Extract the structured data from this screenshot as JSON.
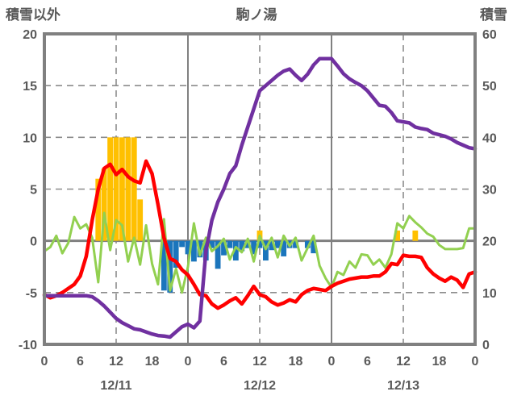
{
  "header": {
    "left_axis_title": "積雪以外",
    "chart_title": "駒ノ湯",
    "right_axis_title": "積雪"
  },
  "chart_data": {
    "type": "line",
    "title": "駒ノ湯",
    "left_axis": {
      "label": "積雪以外",
      "min": -10,
      "max": 20,
      "ticks": [
        20,
        15,
        10,
        5,
        0,
        -5,
        -10
      ]
    },
    "right_axis": {
      "label": "積雪",
      "min": 0,
      "max": 60,
      "ticks": [
        60,
        50,
        40,
        30,
        20,
        10,
        0
      ]
    },
    "x_axis": {
      "total_hours": 72,
      "days": [
        "12/11",
        "12/12",
        "12/13"
      ],
      "hour_tick_labels": [
        "0",
        "6",
        "12",
        "18"
      ],
      "final_tick_label": "0",
      "solid_gridline_hours": [
        24,
        48
      ],
      "dashed_gridline_hours": [
        12,
        36,
        60
      ]
    },
    "grid": {
      "dashed_left_values": [
        15,
        10,
        5,
        -5
      ],
      "zero_line": true
    },
    "legend": "none",
    "colors": {
      "purple_line": "#7030A0",
      "red_line": "#FF0000",
      "green_line": "#92D050",
      "orange_bars": "#FFC000",
      "blue_bars": "#1B75BC",
      "border": "#808080",
      "grid": "#8C8C8C",
      "text": "#595959"
    },
    "series": [
      {
        "id": "purple_line",
        "type": "line",
        "axis": "right",
        "color_key": "purple_line",
        "width": 4.5,
        "values": [
          9.4,
          9.4,
          9.4,
          9.4,
          9.4,
          9.4,
          9.4,
          9.4,
          9.2,
          8.4,
          7.4,
          6.2,
          5.0,
          4.2,
          3.6,
          3.0,
          2.8,
          2.4,
          2.0,
          1.7,
          1.6,
          1.4,
          2.4,
          3.4,
          3.9,
          3.2,
          4.5,
          18,
          24,
          27.5,
          30,
          33,
          34.5,
          38.5,
          42,
          45.5,
          49,
          50,
          51,
          52,
          52.8,
          53.2,
          52,
          51,
          52.2,
          54,
          55.2,
          55.2,
          55.2,
          53.8,
          52.3,
          51.3,
          50.6,
          50,
          49,
          47.6,
          46.2,
          46,
          44.8,
          43.2,
          43,
          42.8,
          42,
          41.7,
          41.5,
          40.8,
          40.5,
          40.2,
          39.7,
          39,
          38.5,
          38,
          37.8
        ]
      },
      {
        "id": "red_line",
        "type": "line",
        "axis": "left",
        "color_key": "red_line",
        "width": 4.5,
        "values": [
          -5.2,
          -5.5,
          -5.3,
          -5.0,
          -4.6,
          -4.2,
          -3.4,
          -1.5,
          2.0,
          5.0,
          7.0,
          7.4,
          6.4,
          6.9,
          6.2,
          5.8,
          5.6,
          7.7,
          6.5,
          3.5,
          0.3,
          -1.7,
          -2.0,
          -2.8,
          -3.3,
          -4.2,
          -5.2,
          -5.3,
          -6.1,
          -6.5,
          -6.2,
          -5.8,
          -5.5,
          -6.1,
          -5.3,
          -4.4,
          -5.2,
          -5.4,
          -5.9,
          -6.2,
          -6.0,
          -5.7,
          -5.9,
          -5.2,
          -4.8,
          -4.6,
          -4.7,
          -4.8,
          -4.4,
          -4.1,
          -3.9,
          -3.7,
          -3.6,
          -3.5,
          -3.5,
          -3.4,
          -3.4,
          -3.0,
          -2.2,
          -2.3,
          -1.4,
          -1.5,
          -1.5,
          -1.6,
          -2.6,
          -3.2,
          -3.6,
          -3.9,
          -3.5,
          -3.8,
          -4.5,
          -3.2,
          -3.0
        ]
      },
      {
        "id": "green_line",
        "type": "line",
        "axis": "left",
        "color_key": "green_line",
        "width": 3,
        "values": [
          -1.0,
          -0.6,
          0.5,
          -1.2,
          -0.2,
          2.3,
          1.2,
          1.6,
          0.3,
          -4.0,
          2.7,
          -0.9,
          2.0,
          1.5,
          -2.0,
          0.3,
          -2.3,
          1.5,
          -2.2,
          -4.2,
          2.1,
          -4.8,
          -2.7,
          -5.0,
          -2.5,
          1.7,
          -1.4,
          0.3,
          -1.0,
          -0.5,
          0.2,
          -1.8,
          -0.6,
          -1.1,
          0.2,
          -2.0,
          0.5,
          -0.8,
          0.3,
          -1.6,
          0.5,
          -0.5,
          0.3,
          -1.9,
          -0.7,
          0.5,
          -2.4,
          -3.6,
          -4.5,
          -3.0,
          -3.3,
          -2.0,
          -2.6,
          -1.3,
          -1.4,
          -2.3,
          -1.8,
          -2.6,
          -1.3,
          1.7,
          1.2,
          2.4,
          1.8,
          1.3,
          0.7,
          0.4,
          -0.4,
          -0.8,
          -0.8,
          -0.8,
          -0.7,
          1.2,
          1.2
        ]
      },
      {
        "id": "orange_bars",
        "type": "bar",
        "axis": "left",
        "color_key": "orange_bars",
        "values": [
          0,
          0,
          0,
          0,
          0,
          0,
          0,
          0,
          0,
          6,
          7,
          10,
          10,
          10,
          10,
          10,
          4,
          0,
          0,
          0,
          0,
          0,
          0,
          0,
          0,
          0,
          0,
          0,
          0,
          0,
          0,
          0,
          0,
          0,
          0,
          0,
          1,
          0,
          0,
          0,
          0,
          0,
          0,
          0,
          0,
          0,
          0,
          0,
          0,
          0,
          0,
          0,
          0,
          0,
          0,
          0,
          0,
          0,
          0,
          1,
          0,
          0,
          1,
          0,
          0,
          0,
          0,
          0,
          0,
          0,
          0,
          0
        ]
      },
      {
        "id": "blue_bars",
        "type": "bar",
        "axis": "left",
        "color_key": "blue_bars",
        "values": [
          0,
          0,
          0,
          0,
          0,
          0,
          0,
          0,
          0,
          0,
          0,
          0,
          0,
          0,
          0,
          0,
          0,
          0,
          0,
          0,
          -4.8,
          -5.0,
          -2.6,
          -0.6,
          -1.3,
          -2.0,
          -1.6,
          -1.9,
          -0.7,
          -2.7,
          -1.4,
          -0.7,
          -1.9,
          -1.0,
          -0.7,
          -1.3,
          -0.7,
          -1.9,
          -0.9,
          -0.7,
          -1.5,
          -0.7,
          -0.7,
          0,
          -0.7,
          -1.2,
          0,
          0,
          0,
          0,
          0,
          0,
          0,
          0,
          0,
          0,
          0,
          0,
          0,
          0,
          0,
          0,
          0,
          0,
          0,
          0,
          0,
          0,
          0,
          0,
          0,
          0
        ]
      }
    ]
  }
}
